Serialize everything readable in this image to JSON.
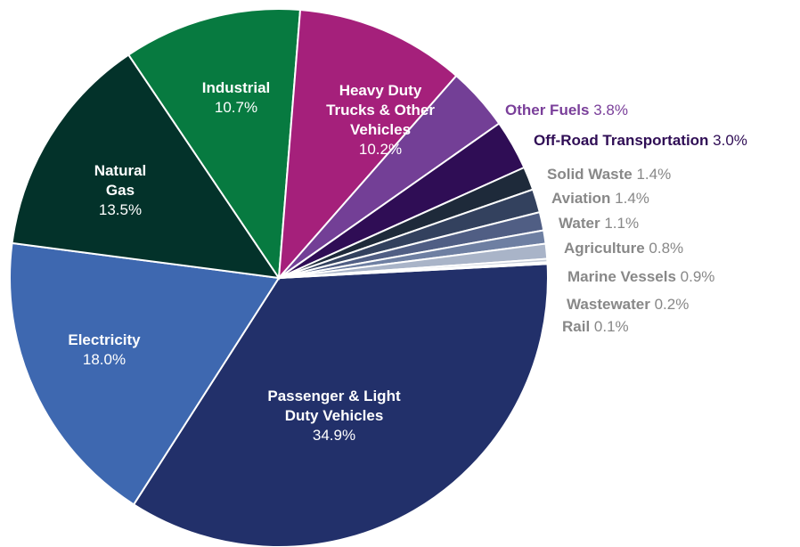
{
  "chart_data": {
    "type": "pie",
    "title": "",
    "start_angle_deg": -3,
    "slices": [
      {
        "label": "Passenger & Light Duty Vehicles",
        "lines": [
          "Passenger & Light",
          "Duty Vehicles"
        ],
        "value": 34.9,
        "pct": "34.9%",
        "color": "#22306a",
        "label_style": "inside"
      },
      {
        "label": "Electricity",
        "lines": [
          "Electricity"
        ],
        "value": 18.0,
        "pct": "18.0%",
        "color": "#3e68b0",
        "label_style": "inside"
      },
      {
        "label": "Natural Gas",
        "lines": [
          "Natural",
          "Gas"
        ],
        "value": 13.5,
        "pct": "13.5%",
        "color": "#03322a",
        "label_style": "inside"
      },
      {
        "label": "Industrial",
        "lines": [
          "Industrial"
        ],
        "value": 10.7,
        "pct": "10.7%",
        "color": "#077a40",
        "label_style": "inside"
      },
      {
        "label": "Heavy Duty Trucks & Other Vehicles",
        "lines": [
          "Heavy Duty",
          "Trucks & Other",
          "Vehicles"
        ],
        "value": 10.2,
        "pct": "10.2%",
        "color": "#a5207b",
        "label_style": "inside"
      },
      {
        "label": "Other Fuels",
        "lines": [
          "Other Fuels"
        ],
        "value": 3.8,
        "pct": "3.8%",
        "color": "#733f96",
        "label_style": "outside",
        "text_color": "#7a3f9a"
      },
      {
        "label": "Off-Road Transportation",
        "lines": [
          "Off-Road Transportation"
        ],
        "value": 3.0,
        "pct": "3.0%",
        "color": "#2f0d55",
        "label_style": "outside",
        "text_color": "#2f0d55"
      },
      {
        "label": "Solid Waste",
        "lines": [
          "Solid Waste"
        ],
        "value": 1.4,
        "pct": "1.4%",
        "color": "#1e2a3a",
        "label_style": "outside",
        "text_color": "#888888"
      },
      {
        "label": "Aviation",
        "lines": [
          "Aviation"
        ],
        "value": 1.4,
        "pct": "1.4%",
        "color": "#33415e",
        "label_style": "outside",
        "text_color": "#888888"
      },
      {
        "label": "Water",
        "lines": [
          "Water"
        ],
        "value": 1.1,
        "pct": "1.1%",
        "color": "#505e84",
        "label_style": "outside",
        "text_color": "#888888"
      },
      {
        "label": "Agriculture",
        "lines": [
          "Agriculture"
        ],
        "value": 0.8,
        "pct": "0.8%",
        "color": "#6e7fa2",
        "label_style": "outside",
        "text_color": "#888888"
      },
      {
        "label": "Marine Vessels",
        "lines": [
          "Marine Vessels"
        ],
        "value": 0.9,
        "pct": "0.9%",
        "color": "#a9b4c8",
        "label_style": "outside",
        "text_color": "#888888"
      },
      {
        "label": "Wastewater",
        "lines": [
          "Wastewater"
        ],
        "value": 0.2,
        "pct": "0.2%",
        "color": "#c6cdd9",
        "label_style": "outside",
        "text_color": "#888888"
      },
      {
        "label": "Rail",
        "lines": [
          "Rail"
        ],
        "value": 0.1,
        "pct": "0.1%",
        "color": "#dde2ea",
        "label_style": "outside",
        "text_color": "#888888"
      }
    ]
  }
}
